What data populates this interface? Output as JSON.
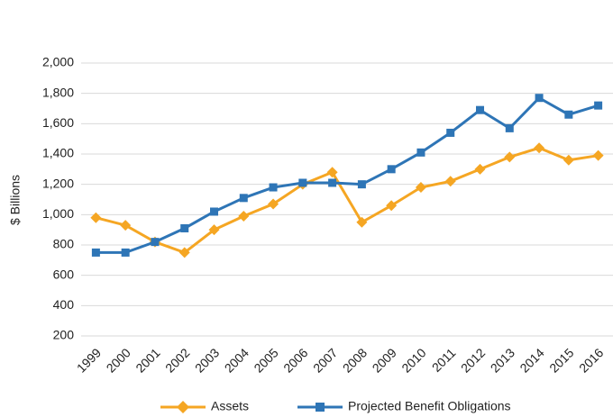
{
  "chart_data": {
    "type": "line",
    "y_label": "$ Billions",
    "categories": [
      "1999",
      "2000",
      "2001",
      "2002",
      "2003",
      "2004",
      "2005",
      "2006",
      "2007",
      "2008",
      "2009",
      "2010",
      "2011",
      "2012",
      "2013",
      "2014",
      "2015",
      "2016"
    ],
    "series": [
      {
        "name": "Assets",
        "color": "#f5a623",
        "marker": "diamond",
        "values": [
          980,
          930,
          820,
          750,
          900,
          990,
          1070,
          1200,
          1280,
          950,
          1060,
          1180,
          1220,
          1300,
          1380,
          1440,
          1360,
          1390
        ]
      },
      {
        "name": "Projected Benefit Obligations",
        "color": "#2e75b6",
        "marker": "square",
        "values": [
          750,
          750,
          820,
          910,
          1020,
          1110,
          1180,
          1210,
          1210,
          1200,
          1300,
          1410,
          1540,
          1690,
          1570,
          1770,
          1660,
          1720
        ]
      }
    ],
    "ylim": [
      200,
      2000
    ],
    "yticks": [
      200,
      400,
      600,
      800,
      {
        "value": 1000,
        "label": "1,000"
      },
      {
        "value": 1200,
        "label": "1,200"
      },
      {
        "value": 1400,
        "label": "1,400"
      },
      {
        "value": 1600,
        "label": "1,600"
      },
      {
        "value": 1800,
        "label": "1,800"
      },
      {
        "value": 2000,
        "label": "2,000"
      }
    ],
    "grid": true,
    "legend": "bottom"
  }
}
